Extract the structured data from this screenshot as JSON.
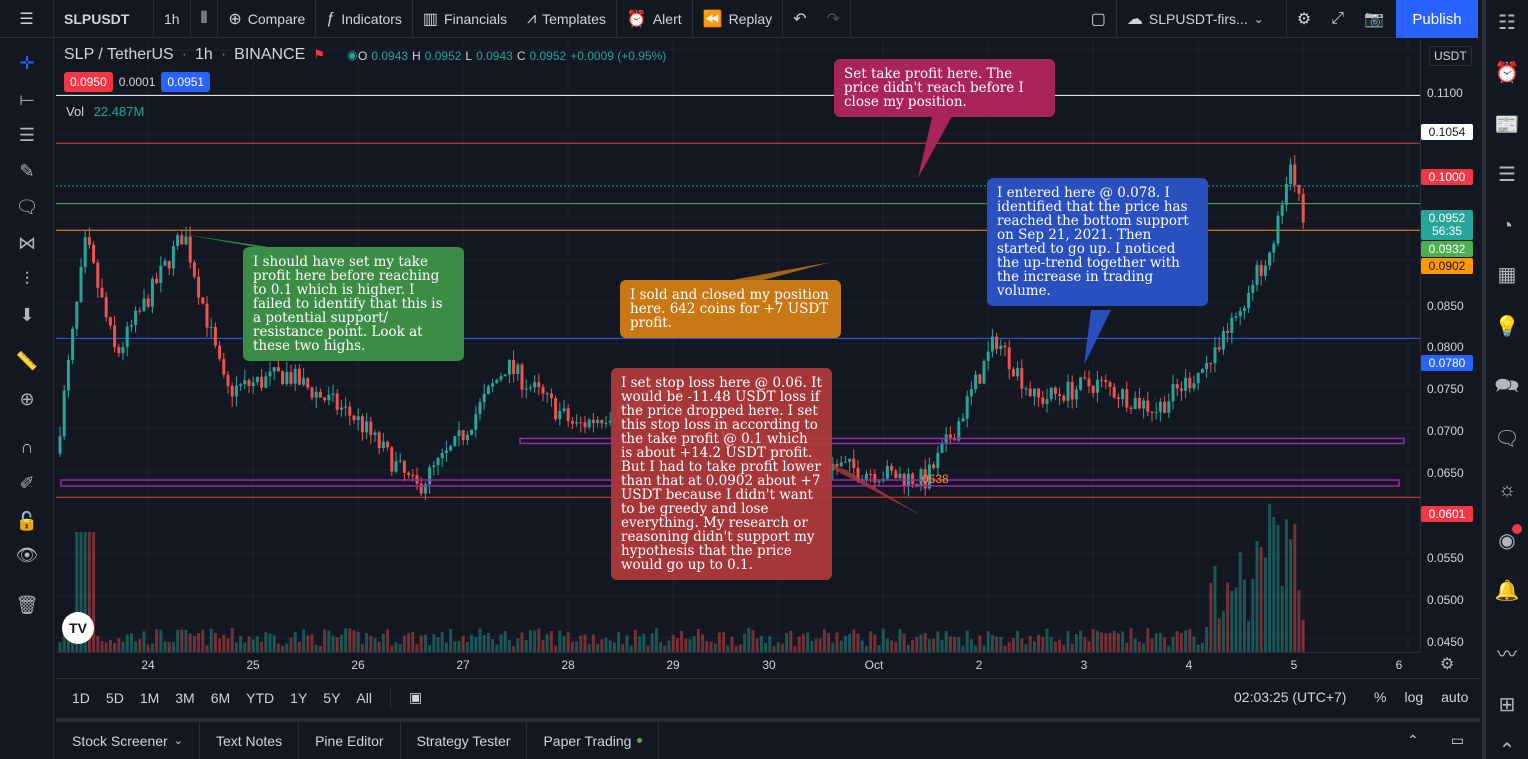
{
  "topbar": {
    "symbol": "SLPUSDT",
    "interval": "1h",
    "compare": "Compare",
    "indicators": "Indicators",
    "financials": "Financials",
    "templates": "Templates",
    "alert": "Alert",
    "replay": "Replay",
    "layout_name": "SLPUSDT-firs...",
    "publish": "Publish"
  },
  "legend": {
    "pair": "SLP / TetherUS",
    "interval": "1h",
    "exchange": "BINANCE",
    "o_label": "O",
    "o": "0.0943",
    "h_label": "H",
    "h": "0.0952",
    "l_label": "L",
    "l": "0.0943",
    "c_label": "C",
    "c": "0.0952",
    "change": "+0.0009 (+0.95%)",
    "bid": "0.0950",
    "spread": "0.0001",
    "ask": "0.0951",
    "vol_label": "Vol",
    "vol": "22.487M"
  },
  "price_axis": {
    "currency": "USDT",
    "ticks": [
      "0.1100",
      "0.0850",
      "0.0800",
      "0.0750",
      "0.0700",
      "0.0650",
      "0.0550",
      "0.0500",
      "0.0450"
    ],
    "tags": {
      "p1054": "0.1054",
      "p1000": "0.1000",
      "last": "0.0952",
      "countdown": "56:35",
      "p0932": "0.0932",
      "p0902": "0.0902",
      "p0780": "0.0780",
      "p0601": "0.0601"
    }
  },
  "time_axis": [
    "24",
    "25",
    "26",
    "27",
    "28",
    "29",
    "30",
    "Oct",
    "2",
    "3",
    "4",
    "5",
    "6"
  ],
  "chart_labels": {
    "entry_marker": "0638"
  },
  "notes": {
    "take_profit": "Set take profit here. The price didn't reach before I close my position.",
    "should_have": "I should have set my take profit here before reaching to 0.1 which is higher.  I failed to identify that this is a potential support/ resistance point. Look at these two highs.",
    "sold": "I sold and closed my position here. 642 coins for +7 USDT profit.",
    "entered": "I entered here @ 0.078. I identified that the price has reached the bottom support on Sep 21, 2021. Then started to go up. I noticed the up-trend together with the increase in trading volume.",
    "stop_loss": "I set stop loss here @ 0.06. It would be  -11.48 USDT loss if the price dropped here. I set this stop loss in according to the take profit @ 0.1 which is about +14.2 USDT profit. But I had to take profit lower than that at 0.0902 about +7 USDT because I didn't want to be greedy and lose everything. My research or reasoning didn't support my hypothesis that the price would go up to 0.1."
  },
  "ranges": [
    "1D",
    "5D",
    "1M",
    "3M",
    "6M",
    "YTD",
    "1Y",
    "5Y",
    "All"
  ],
  "clock": "02:03:25 (UTC+7)",
  "scale": {
    "percent": "%",
    "log": "log",
    "auto": "auto"
  },
  "panels": [
    "Stock Screener",
    "Text Notes",
    "Pine Editor",
    "Strategy Tester",
    "Paper Trading"
  ],
  "colors": {
    "up": "#26a69a",
    "down": "#ef5350",
    "accent": "#2962ff",
    "note_red": "#b03a3a",
    "note_green": "#3c8c46",
    "note_orange": "#c87814",
    "note_blue": "#2a4fbf",
    "note_magenta": "#a8245a"
  }
}
